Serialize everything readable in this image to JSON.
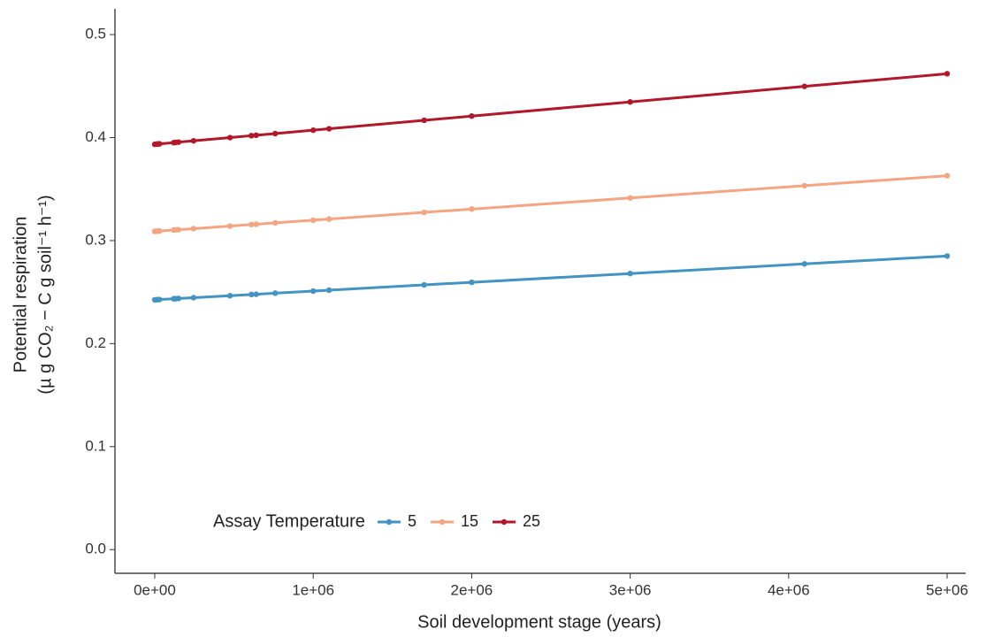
{
  "chart_data": {
    "type": "line",
    "x_label": "Soil development stage (years)",
    "y_label": "Potential respiration",
    "y_label_2": "(µ g CO₂ − C g soil⁻¹ h⁻¹)",
    "legend_title": "Assay Temperature",
    "legend": "bottom-left",
    "grid": false,
    "x": [
      0,
      10000,
      20000,
      30000,
      120000,
      130000,
      150000,
      245000,
      475000,
      610000,
      640000,
      760000,
      1000000,
      1100000,
      1700000,
      2000000,
      3000000,
      4100000,
      5000000
    ],
    "series": [
      {
        "name": "5",
        "color": "#4393c3",
        "values": [
          0.2425,
          0.2426,
          0.2427,
          0.2428,
          0.2435,
          0.2436,
          0.2438,
          0.2446,
          0.2465,
          0.2477,
          0.2479,
          0.249,
          0.251,
          0.2519,
          0.257,
          0.2595,
          0.268,
          0.2774,
          0.285
        ]
      },
      {
        "name": "15",
        "color": "#f4a582",
        "values": [
          0.309,
          0.3091,
          0.3092,
          0.3093,
          0.3103,
          0.3104,
          0.3106,
          0.3116,
          0.3141,
          0.3156,
          0.3159,
          0.3172,
          0.3198,
          0.3209,
          0.3274,
          0.3306,
          0.3414,
          0.3533,
          0.363
        ]
      },
      {
        "name": "25",
        "color": "#b2182b",
        "values": [
          0.3935,
          0.3936,
          0.3938,
          0.3939,
          0.3951,
          0.3953,
          0.3956,
          0.3969,
          0.4,
          0.4019,
          0.4023,
          0.4039,
          0.4072,
          0.4086,
          0.4168,
          0.4209,
          0.4346,
          0.4497,
          0.462
        ]
      }
    ],
    "xlim": [
      -251000,
      5117000
    ],
    "xticks": [
      {
        "value": 0,
        "label": "0e+00"
      },
      {
        "value": 1000000,
        "label": "1e+06"
      },
      {
        "value": 2000000,
        "label": "2e+06"
      },
      {
        "value": 3000000,
        "label": "3e+06"
      },
      {
        "value": 4000000,
        "label": "4e+06"
      },
      {
        "value": 5000000,
        "label": "5e+06"
      }
    ],
    "ylim": [
      -0.023,
      0.525
    ],
    "yticks": [
      {
        "value": 0,
        "label": "0.0"
      },
      0.1,
      0.2,
      0.3,
      0.4,
      0.5
    ]
  }
}
